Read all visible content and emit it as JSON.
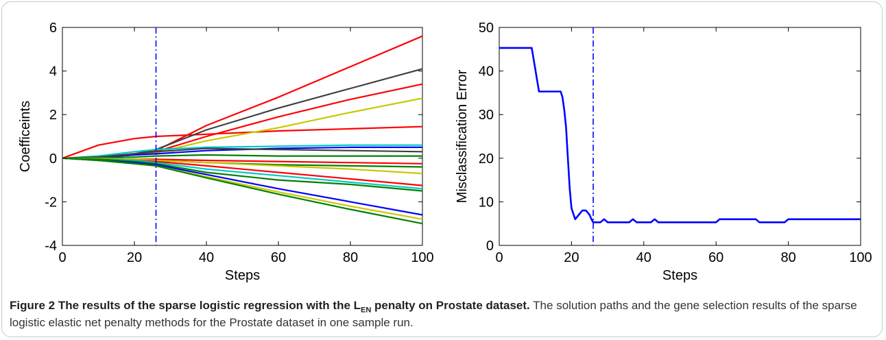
{
  "caption": {
    "figure_label": "Figure 2",
    "bold_pre": "The results of the sparse logistic regression with the L",
    "bold_sub": "EN",
    "bold_post": " penalty on Prostate dataset.",
    "body": "The solution paths and the gene selection results of the sparse logistic elastic net penalty methods for the Prostate dataset in one sample run."
  },
  "chart_data": [
    {
      "type": "line",
      "xlabel": "Steps",
      "ylabel": "Coefficeints",
      "xlim": [
        0,
        100
      ],
      "ylim": [
        -4,
        6
      ],
      "xticks": [
        "0",
        "20",
        "40",
        "60",
        "80",
        "100"
      ],
      "yticks": [
        "-4",
        "-2",
        "0",
        "2",
        "4",
        "6"
      ],
      "grid": false,
      "vline_x": 26,
      "vline_color": "#0000ff",
      "x": [
        0,
        10,
        20,
        26,
        40,
        60,
        80,
        100
      ],
      "series": [
        {
          "color": "#ff0000",
          "values": [
            0,
            0.6,
            0.9,
            1.0,
            1.1,
            1.25,
            1.35,
            1.45
          ]
        },
        {
          "color": "#ff0000",
          "values": [
            0,
            0.05,
            0.2,
            0.35,
            1.5,
            2.8,
            4.2,
            5.6
          ]
        },
        {
          "color": "#404040",
          "values": [
            0,
            0.05,
            0.2,
            0.4,
            1.3,
            2.3,
            3.2,
            4.1
          ]
        },
        {
          "color": "#ff0000",
          "values": [
            0,
            0.05,
            0.15,
            0.3,
            1.0,
            1.9,
            2.7,
            3.4
          ]
        },
        {
          "color": "#c8c800",
          "values": [
            0,
            0.05,
            0.15,
            0.25,
            0.8,
            1.4,
            2.1,
            2.75
          ]
        },
        {
          "color": "#00c8c8",
          "values": [
            0,
            0.1,
            0.3,
            0.4,
            0.5,
            0.55,
            0.6,
            0.6
          ]
        },
        {
          "color": "#0000ff",
          "values": [
            0,
            0.05,
            0.15,
            0.2,
            0.35,
            0.45,
            0.5,
            0.5
          ]
        },
        {
          "color": "#404040",
          "values": [
            0,
            0.05,
            0.2,
            0.3,
            0.45,
            0.4,
            0.35,
            0.3
          ]
        },
        {
          "color": "#008000",
          "values": [
            0,
            0.02,
            0.05,
            0.1,
            0.15,
            0.1,
            0.1,
            0.1
          ]
        },
        {
          "color": "#ff0000",
          "values": [
            0,
            -0.02,
            -0.05,
            -0.05,
            -0.1,
            -0.15,
            -0.2,
            -0.25
          ]
        },
        {
          "color": "#008000",
          "values": [
            0,
            -0.02,
            -0.05,
            -0.1,
            -0.2,
            -0.3,
            -0.35,
            -0.4
          ]
        },
        {
          "color": "#c8c800",
          "values": [
            0,
            -0.02,
            -0.05,
            -0.1,
            -0.2,
            -0.35,
            -0.5,
            -0.7
          ]
        },
        {
          "color": "#ff0000",
          "values": [
            0,
            -0.05,
            -0.1,
            -0.15,
            -0.35,
            -0.65,
            -0.95,
            -1.25
          ]
        },
        {
          "color": "#00c8c8",
          "values": [
            0,
            -0.05,
            -0.1,
            -0.2,
            -0.5,
            -0.8,
            -1.1,
            -1.4
          ]
        },
        {
          "color": "#008000",
          "values": [
            0,
            -0.05,
            -0.15,
            -0.25,
            -0.65,
            -1.0,
            -1.2,
            -1.5
          ]
        },
        {
          "color": "#0000ff",
          "values": [
            0,
            -0.1,
            -0.2,
            -0.3,
            -0.75,
            -1.4,
            -2.0,
            -2.6
          ]
        },
        {
          "color": "#c8c800",
          "values": [
            0,
            -0.1,
            -0.25,
            -0.35,
            -0.85,
            -1.55,
            -2.2,
            -2.8
          ]
        },
        {
          "color": "#008000",
          "values": [
            0,
            -0.1,
            -0.25,
            -0.35,
            -0.9,
            -1.65,
            -2.35,
            -3.0
          ]
        }
      ]
    },
    {
      "type": "line",
      "xlabel": "Steps",
      "ylabel": "Misclassification Error",
      "xlim": [
        0,
        100
      ],
      "ylim": [
        0,
        50
      ],
      "xticks": [
        "0",
        "20",
        "40",
        "60",
        "80",
        "100"
      ],
      "yticks": [
        "0",
        "10",
        "20",
        "30",
        "40",
        "50"
      ],
      "grid": false,
      "vline_x": 26,
      "vline_color": "#0000ff",
      "series": [
        {
          "color": "#0000ff",
          "x": [
            0,
            9,
            11,
            17,
            17.5,
            18,
            18.5,
            19,
            19.5,
            20,
            21,
            22,
            23,
            24,
            25,
            25.5,
            26,
            28,
            29,
            30,
            36,
            37,
            38,
            42,
            43,
            44,
            60,
            61,
            71,
            72,
            79,
            80,
            100
          ],
          "values": [
            45.3,
            45.3,
            35.3,
            35.3,
            34,
            31,
            27,
            20,
            13,
            8.5,
            6,
            7,
            8,
            8,
            7,
            6,
            5.3,
            5.3,
            6,
            5.3,
            5.3,
            6,
            5.3,
            5.3,
            6,
            5.3,
            5.3,
            6,
            6,
            5.3,
            5.3,
            6,
            6
          ]
        }
      ]
    }
  ]
}
